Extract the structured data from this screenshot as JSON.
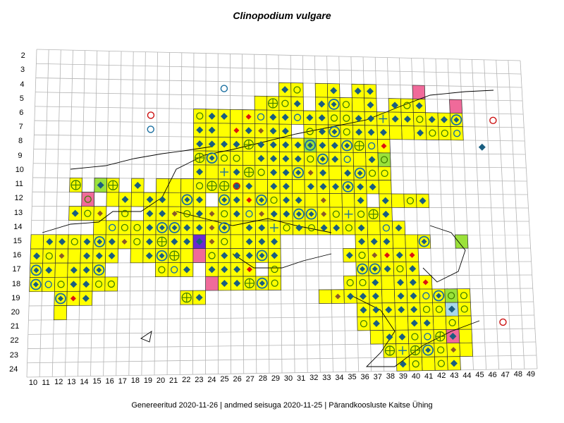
{
  "title": "Clinopodium vulgare",
  "footer": "Genereeritud 2020-11-26  |  andmed seisuga 2020-11-25  |  Pärandkoosluste Kaitse Ühing",
  "rows": [
    "2",
    "3",
    "4",
    "5",
    "6",
    "7",
    "8",
    "9",
    "10",
    "11",
    "12",
    "13",
    "14",
    "15",
    "16",
    "17",
    "18",
    "19",
    "20",
    "21",
    "22",
    "23",
    "24"
  ],
  "cols": [
    "10",
    "11",
    "12",
    "13",
    "14",
    "15",
    "16",
    "17",
    "18",
    "19",
    "20",
    "21",
    "22",
    "23",
    "24",
    "25",
    "26",
    "27",
    "28",
    "29",
    "30",
    "31",
    "32",
    "33",
    "34",
    "35",
    "36",
    "37",
    "38",
    "39",
    "40",
    "41",
    "42",
    "43",
    "44",
    "45",
    "46",
    "47",
    "48",
    "49"
  ],
  "colors": {
    "grid": "#b4b4b4",
    "cell_fill": "#ffff00",
    "cell_border": "#333333",
    "coast": "#000000",
    "diamond": "#1a5e80",
    "diamond_red": "#dd1111",
    "diamond_brown": "#8b5a2b",
    "circle_green": "#3f7f00",
    "circle_blue": "#1a6fa0",
    "circle_red": "#cc1111",
    "pink": "#f06a9a",
    "green": "#9be23a",
    "violet": "#6a2ad0",
    "lightblue": "#a8d8ea"
  },
  "legend_symbols": [
    "diamond-marker",
    "ring-marker",
    "diamond-ring-marker",
    "cross-ring-marker",
    "plus-marker"
  ]
}
